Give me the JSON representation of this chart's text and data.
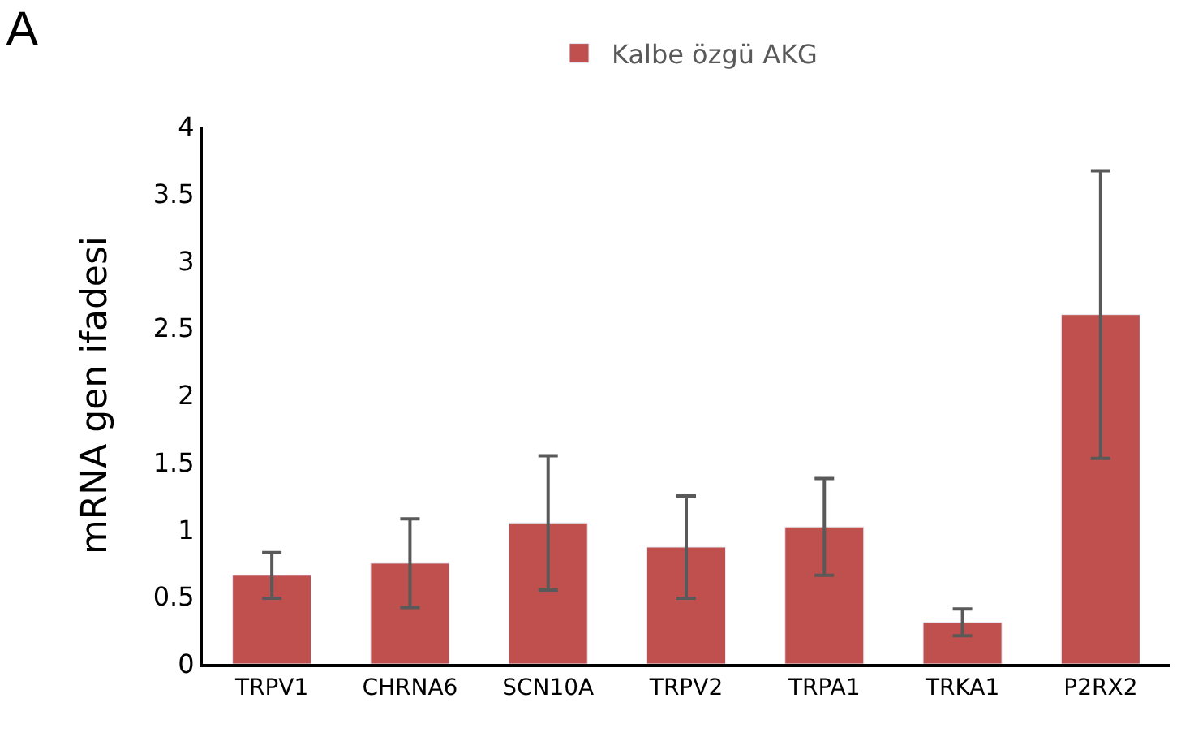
{
  "chart_data": {
    "type": "bar",
    "title": "A",
    "ylabel": "mRNA gen ifadesi",
    "categories": [
      "TRPV1",
      "CHRNA6",
      "SCN10A",
      "TRPV2",
      "TRPA1",
      "TRKA1",
      "P2RX2"
    ],
    "series": [
      {
        "name": "Kalbe özgü AKG",
        "color": "#c0504d",
        "values": [
          0.66,
          0.75,
          1.05,
          0.87,
          1.02,
          0.31,
          2.6
        ],
        "errors": [
          0.17,
          0.33,
          0.5,
          0.38,
          0.36,
          0.1,
          1.07
        ]
      }
    ],
    "ylim": [
      0,
      4
    ],
    "yticks": [
      0,
      0.5,
      1,
      1.5,
      2,
      2.5,
      3,
      3.5,
      4
    ],
    "grid": false,
    "legend": "top"
  }
}
